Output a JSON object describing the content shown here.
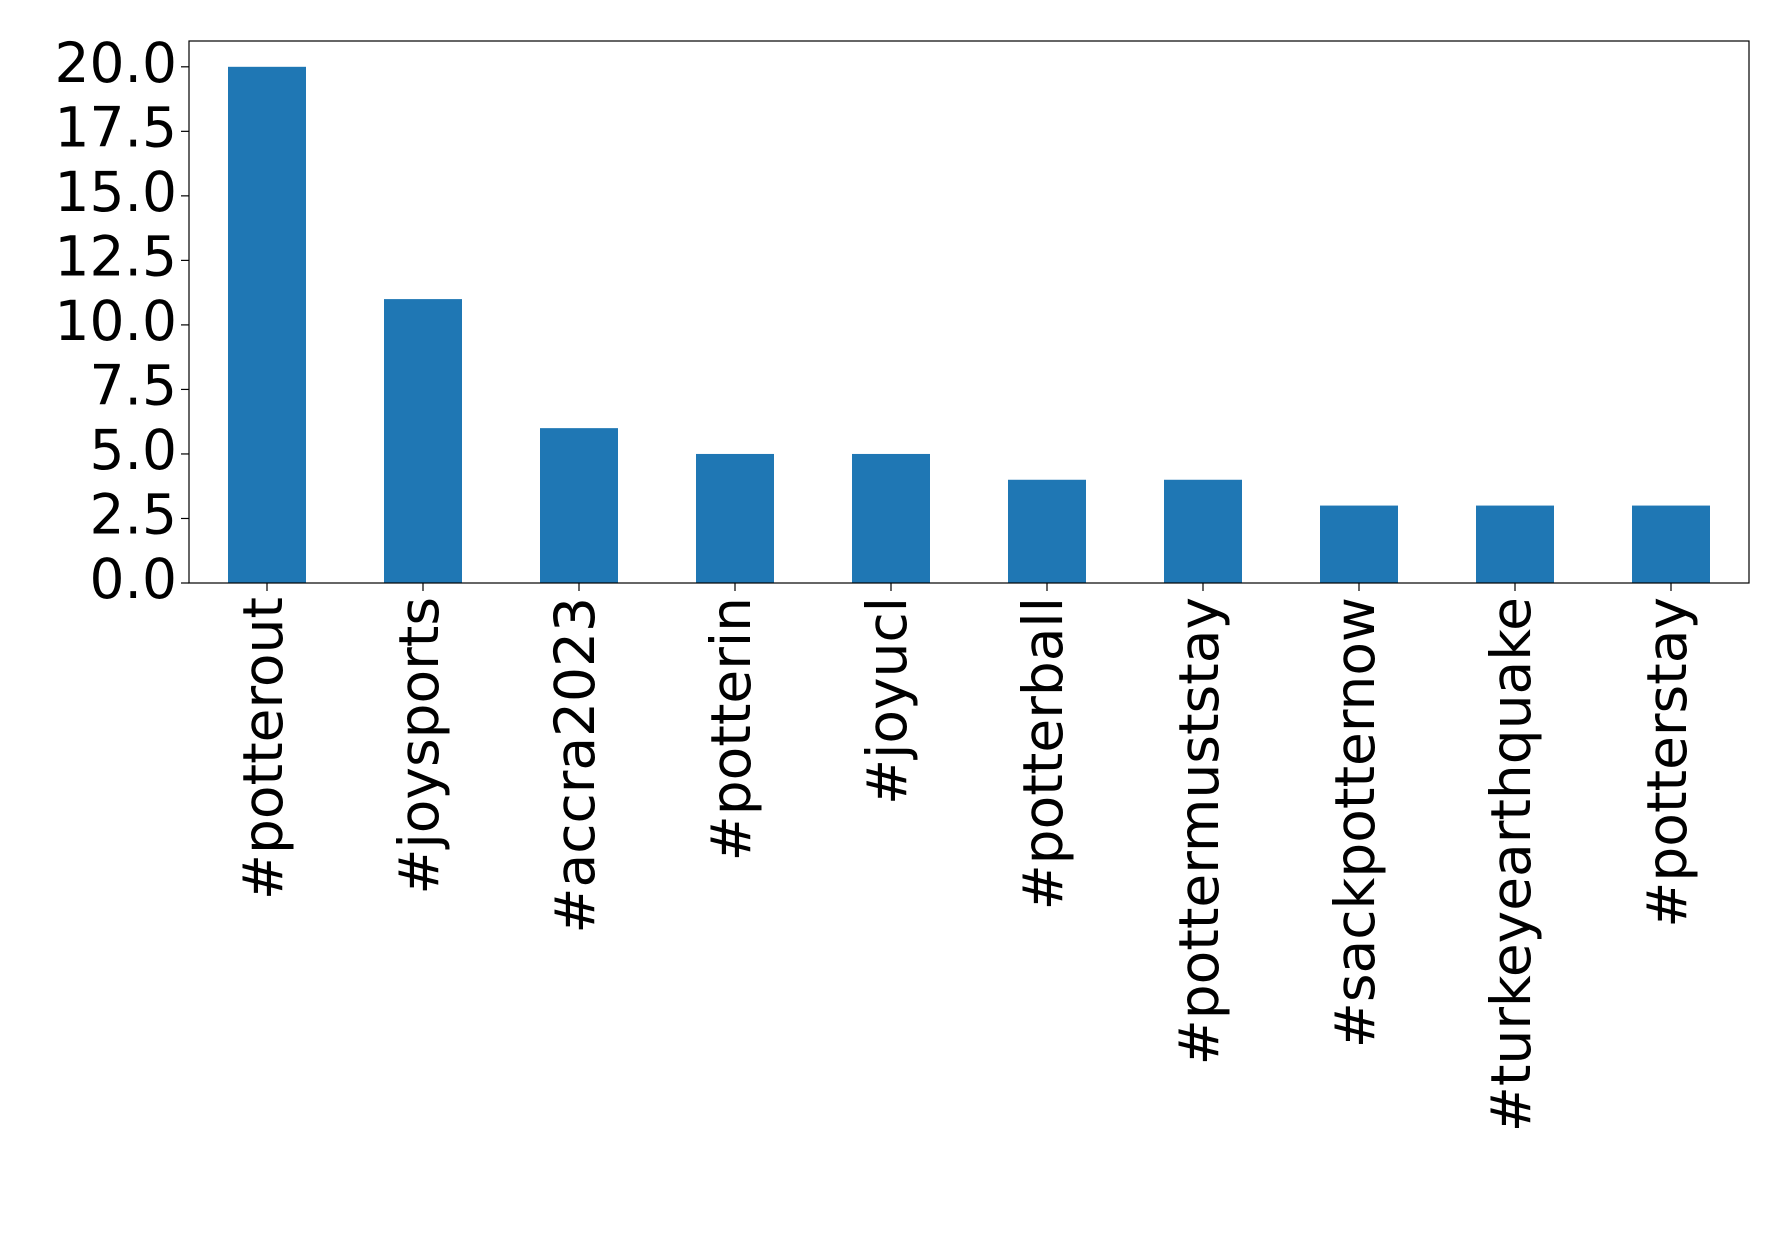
{
  "chart_data": {
    "type": "bar",
    "categories": [
      "#potterout",
      "#joysports",
      "#accra2023",
      "#potterin",
      "#joyucl",
      "#potterball",
      "#pottermuststay",
      "#sackpotternow",
      "#turkeyearthquake",
      "#potterstay"
    ],
    "values": [
      20,
      11,
      6,
      5,
      5,
      4,
      4,
      3,
      3,
      3
    ],
    "color": "#1f77b4",
    "ylim": [
      0,
      21
    ],
    "yticks": [
      {
        "value": 0,
        "label": "0.0"
      },
      {
        "value": 2.5,
        "label": "2.5"
      },
      {
        "value": 5,
        "label": "5.0"
      },
      {
        "value": 7.5,
        "label": "7.5"
      },
      {
        "value": 10,
        "label": "10.0"
      },
      {
        "value": 12.5,
        "label": "12.5"
      },
      {
        "value": 15,
        "label": "15.0"
      },
      {
        "value": 17.5,
        "label": "17.5"
      },
      {
        "value": 20,
        "label": "20.0"
      }
    ],
    "grid": false
  }
}
